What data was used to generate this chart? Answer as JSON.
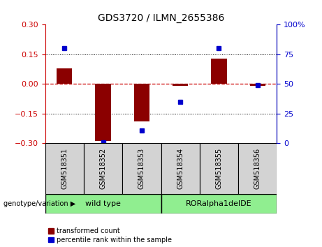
{
  "title": "GDS3720 / ILMN_2655386",
  "samples": [
    "GSM518351",
    "GSM518352",
    "GSM518353",
    "GSM518354",
    "GSM518355",
    "GSM518356"
  ],
  "red_values": [
    0.08,
    -0.29,
    -0.19,
    -0.01,
    0.13,
    -0.01
  ],
  "blue_values": [
    80,
    1,
    11,
    35,
    80,
    49
  ],
  "ylim_left": [
    -0.3,
    0.3
  ],
  "ylim_right": [
    0,
    100
  ],
  "yticks_left": [
    -0.3,
    -0.15,
    0,
    0.15,
    0.3
  ],
  "yticks_right": [
    0,
    25,
    50,
    75,
    100
  ],
  "group1_label": "wild type",
  "group2_label": "RORalpha1delDE",
  "group_color": "#90EE90",
  "group_label_prefix": "genotype/variation",
  "bar_color": "#8B0000",
  "dot_color": "#0000CD",
  "hline_color": "#CC0000",
  "legend_red_label": "transformed count",
  "legend_blue_label": "percentile rank within the sample",
  "bar_width": 0.4
}
